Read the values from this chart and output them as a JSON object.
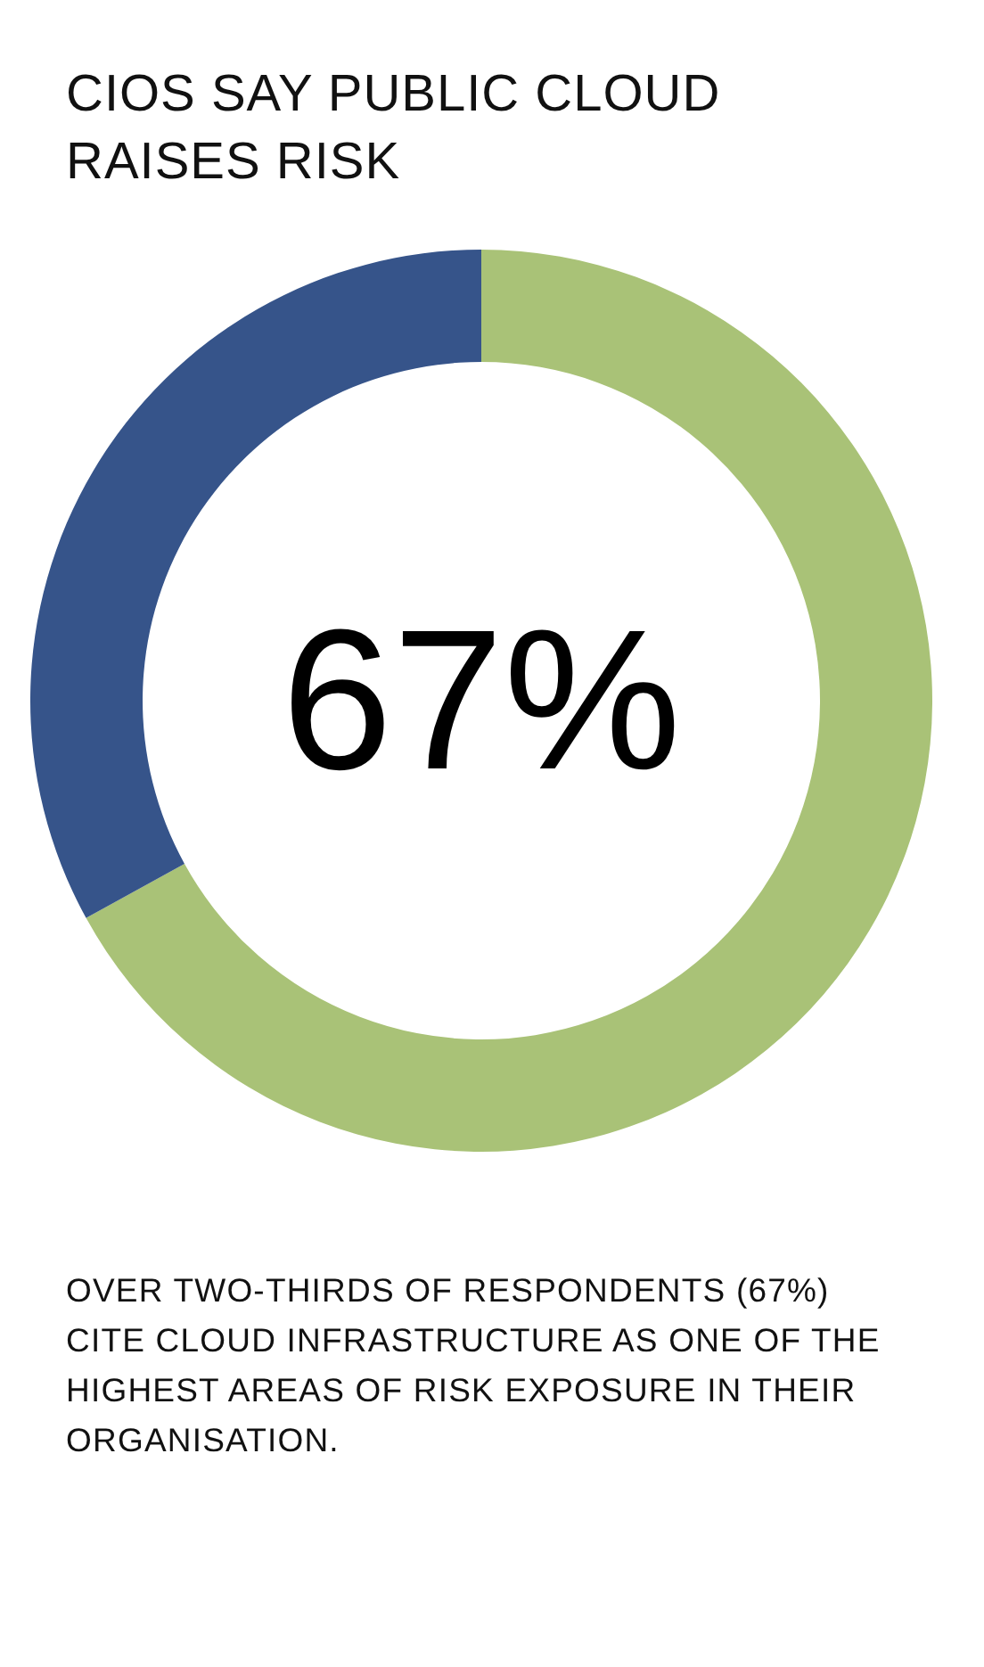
{
  "chart_data": {
    "type": "donut",
    "title": "CIOS SAY PUBLIC CLOUD RAISES RISK",
    "categories": [
      null,
      null
    ],
    "values": [
      67,
      33
    ],
    "colors": [
      "#a9c277",
      "#36548a"
    ],
    "annotations": [
      "67%",
      "OVER TWO-THIRDS OF RESPONDENTS (67%) CITE CLOUD INFRASTRUCTURE AS ONE OF THE HIGHEST AREAS OF RISK EXPOSURE IN THEIR ORGANISATION."
    ]
  }
}
